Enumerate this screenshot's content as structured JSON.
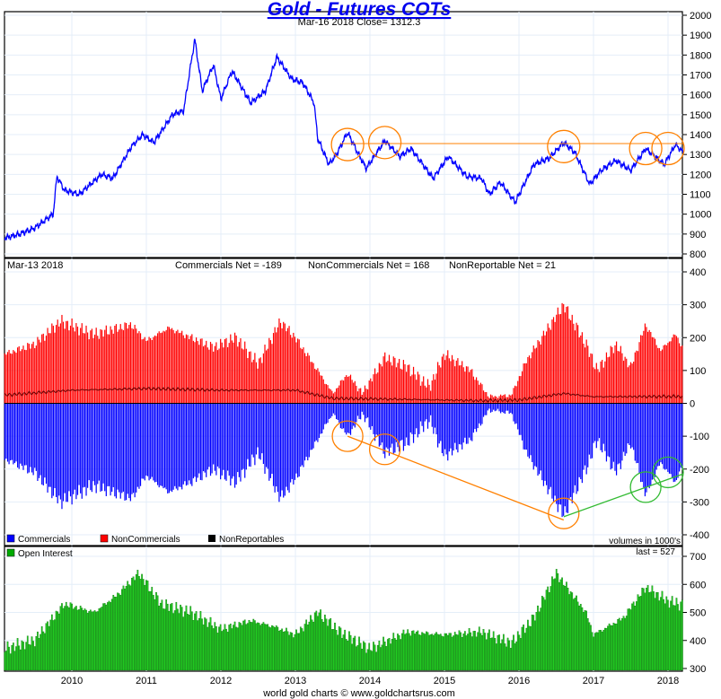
{
  "chart_data": [
    {
      "type": "line",
      "title": "Gold - Futures COTs",
      "subtitle": "Mar-16  2018   Close= 1312.3",
      "ylim": [
        800,
        2000
      ],
      "yticks": [
        800,
        900,
        1000,
        1100,
        1200,
        1300,
        1400,
        1500,
        1600,
        1700,
        1800,
        1900,
        2000
      ],
      "series": [
        {
          "name": "Gold",
          "color": "#0000ff",
          "points": [
            [
              2009.1,
              880
            ],
            [
              2009.3,
              900
            ],
            [
              2009.5,
              930
            ],
            [
              2009.75,
              1000
            ],
            [
              2009.8,
              1190
            ],
            [
              2009.9,
              1120
            ],
            [
              2010.1,
              1100
            ],
            [
              2010.4,
              1200
            ],
            [
              2010.55,
              1180
            ],
            [
              2010.8,
              1340
            ],
            [
              2010.95,
              1400
            ],
            [
              2011.1,
              1360
            ],
            [
              2011.35,
              1500
            ],
            [
              2011.5,
              1520
            ],
            [
              2011.65,
              1880
            ],
            [
              2011.75,
              1620
            ],
            [
              2011.9,
              1750
            ],
            [
              2012.0,
              1580
            ],
            [
              2012.15,
              1720
            ],
            [
              2012.4,
              1560
            ],
            [
              2012.6,
              1620
            ],
            [
              2012.75,
              1790
            ],
            [
              2012.95,
              1680
            ],
            [
              2013.1,
              1660
            ],
            [
              2013.25,
              1560
            ],
            [
              2013.3,
              1380
            ],
            [
              2013.45,
              1250
            ],
            [
              2013.55,
              1300
            ],
            [
              2013.7,
              1410
            ],
            [
              2013.85,
              1300
            ],
            [
              2013.95,
              1230
            ],
            [
              2014.2,
              1370
            ],
            [
              2014.4,
              1290
            ],
            [
              2014.55,
              1330
            ],
            [
              2014.75,
              1230
            ],
            [
              2014.85,
              1180
            ],
            [
              2015.05,
              1290
            ],
            [
              2015.3,
              1190
            ],
            [
              2015.5,
              1180
            ],
            [
              2015.6,
              1100
            ],
            [
              2015.75,
              1160
            ],
            [
              2015.95,
              1060
            ],
            [
              2016.2,
              1250
            ],
            [
              2016.4,
              1280
            ],
            [
              2016.6,
              1360
            ],
            [
              2016.75,
              1310
            ],
            [
              2016.95,
              1150
            ],
            [
              2017.1,
              1220
            ],
            [
              2017.3,
              1270
            ],
            [
              2017.5,
              1220
            ],
            [
              2017.7,
              1330
            ],
            [
              2017.95,
              1250
            ],
            [
              2018.1,
              1350
            ],
            [
              2018.2,
              1312
            ]
          ]
        }
      ],
      "annotations": {
        "horizontal_line": {
          "y": 1355,
          "x": [
            2013.6,
            2018.2
          ],
          "color": "#ff8000"
        },
        "circles": [
          [
            2013.7,
            1350
          ],
          [
            2014.2,
            1360
          ],
          [
            2016.6,
            1340
          ],
          [
            2017.7,
            1330
          ],
          [
            2018.0,
            1330
          ]
        ]
      }
    },
    {
      "type": "bar",
      "header_date": "Mar-13  2018",
      "stats": [
        "Commercials Net = -189",
        "NonCommercials Net = 168",
        "NonReportable Net = 21"
      ],
      "note": "volumes in 1000's",
      "ylim": [
        -400,
        400
      ],
      "yticks": [
        -400,
        -300,
        -200,
        -100,
        0,
        100,
        200,
        300,
        400
      ],
      "legend": [
        {
          "name": "Commercials",
          "color": "#0000ff"
        },
        {
          "name": "NonCommercials",
          "color": "#ff0000"
        },
        {
          "name": "NonReportables",
          "color": "#000000"
        }
      ],
      "series": [
        {
          "name": "Commercials",
          "points": [
            [
              2009.1,
              -170
            ],
            [
              2009.5,
              -210
            ],
            [
              2009.85,
              -300
            ],
            [
              2010.3,
              -250
            ],
            [
              2010.8,
              -290
            ],
            [
              2011.0,
              -220
            ],
            [
              2011.3,
              -270
            ],
            [
              2011.6,
              -240
            ],
            [
              2011.9,
              -200
            ],
            [
              2012.2,
              -240
            ],
            [
              2012.5,
              -150
            ],
            [
              2012.8,
              -290
            ],
            [
              2013.0,
              -230
            ],
            [
              2013.3,
              -110
            ],
            [
              2013.5,
              -30
            ],
            [
              2013.7,
              -100
            ],
            [
              2013.9,
              -30
            ],
            [
              2014.2,
              -150
            ],
            [
              2014.5,
              -120
            ],
            [
              2014.8,
              -50
            ],
            [
              2015.0,
              -160
            ],
            [
              2015.35,
              -110
            ],
            [
              2015.6,
              -20
            ],
            [
              2015.9,
              -30
            ],
            [
              2016.1,
              -150
            ],
            [
              2016.6,
              -340
            ],
            [
              2016.9,
              -200
            ],
            [
              2017.05,
              -110
            ],
            [
              2017.3,
              -210
            ],
            [
              2017.5,
              -120
            ],
            [
              2017.7,
              -280
            ],
            [
              2017.9,
              -180
            ],
            [
              2018.1,
              -240
            ],
            [
              2018.2,
              -189
            ]
          ]
        },
        {
          "name": "NonCommercials",
          "points": [
            [
              2009.1,
              150
            ],
            [
              2009.5,
              180
            ],
            [
              2009.85,
              250
            ],
            [
              2010.3,
              210
            ],
            [
              2010.8,
              240
            ],
            [
              2011.0,
              190
            ],
            [
              2011.3,
              230
            ],
            [
              2011.6,
              200
            ],
            [
              2011.9,
              170
            ],
            [
              2012.2,
              200
            ],
            [
              2012.5,
              120
            ],
            [
              2012.8,
              250
            ],
            [
              2013.0,
              200
            ],
            [
              2013.3,
              100
            ],
            [
              2013.5,
              30
            ],
            [
              2013.7,
              90
            ],
            [
              2013.9,
              30
            ],
            [
              2014.2,
              140
            ],
            [
              2014.5,
              110
            ],
            [
              2014.8,
              50
            ],
            [
              2015.0,
              150
            ],
            [
              2015.35,
              100
            ],
            [
              2015.6,
              20
            ],
            [
              2015.9,
              25
            ],
            [
              2016.1,
              130
            ],
            [
              2016.6,
              300
            ],
            [
              2016.9,
              180
            ],
            [
              2017.05,
              100
            ],
            [
              2017.3,
              180
            ],
            [
              2017.5,
              110
            ],
            [
              2017.7,
              240
            ],
            [
              2017.9,
              160
            ],
            [
              2018.1,
              210
            ],
            [
              2018.2,
              168
            ]
          ]
        },
        {
          "name": "NonReportables",
          "points": [
            [
              2009.1,
              25
            ],
            [
              2010.0,
              40
            ],
            [
              2011.0,
              45
            ],
            [
              2012.0,
              40
            ],
            [
              2013.0,
              40
            ],
            [
              2013.5,
              15
            ],
            [
              2014.5,
              12
            ],
            [
              2015.5,
              8
            ],
            [
              2016.0,
              10
            ],
            [
              2016.6,
              30
            ],
            [
              2017.0,
              20
            ],
            [
              2018.2,
              21
            ]
          ]
        }
      ],
      "annotations": {
        "orange_circles": [
          [
            2013.7,
            -100
          ],
          [
            2014.2,
            -140
          ],
          [
            2016.6,
            -335
          ]
        ],
        "orange_line": [
          [
            2013.7,
            -100
          ],
          [
            2016.6,
            -355
          ]
        ],
        "green_circles": [
          [
            2017.7,
            -255
          ],
          [
            2018.0,
            -210
          ]
        ],
        "green_line": [
          [
            2016.6,
            -345
          ],
          [
            2018.2,
            -215
          ]
        ]
      }
    },
    {
      "type": "bar",
      "legend": [
        {
          "name": "Open Interest",
          "color": "#00aa00"
        }
      ],
      "last_label": "last = 527",
      "ylim": [
        300,
        700
      ],
      "yticks": [
        300,
        400,
        500,
        600,
        700
      ],
      "series": [
        {
          "name": "Open Interest",
          "points": [
            [
              2009.1,
              370
            ],
            [
              2009.5,
              400
            ],
            [
              2009.9,
              530
            ],
            [
              2010.3,
              500
            ],
            [
              2010.6,
              560
            ],
            [
              2010.9,
              640
            ],
            [
              2011.2,
              530
            ],
            [
              2011.6,
              500
            ],
            [
              2012.0,
              440
            ],
            [
              2012.4,
              470
            ],
            [
              2012.7,
              450
            ],
            [
              2013.0,
              420
            ],
            [
              2013.3,
              500
            ],
            [
              2013.6,
              430
            ],
            [
              2014.0,
              370
            ],
            [
              2014.5,
              430
            ],
            [
              2015.0,
              420
            ],
            [
              2015.5,
              430
            ],
            [
              2015.9,
              390
            ],
            [
              2016.2,
              480
            ],
            [
              2016.5,
              640
            ],
            [
              2016.9,
              500
            ],
            [
              2017.0,
              420
            ],
            [
              2017.4,
              480
            ],
            [
              2017.7,
              590
            ],
            [
              2018.0,
              540
            ],
            [
              2018.2,
              527
            ]
          ]
        }
      ]
    }
  ],
  "xaxis": {
    "ticks": [
      "2010",
      "2011",
      "2012",
      "2013",
      "2014",
      "2015",
      "2016",
      "2017",
      "2018"
    ]
  },
  "footer": "world gold charts © www.goldchartsrus.com"
}
